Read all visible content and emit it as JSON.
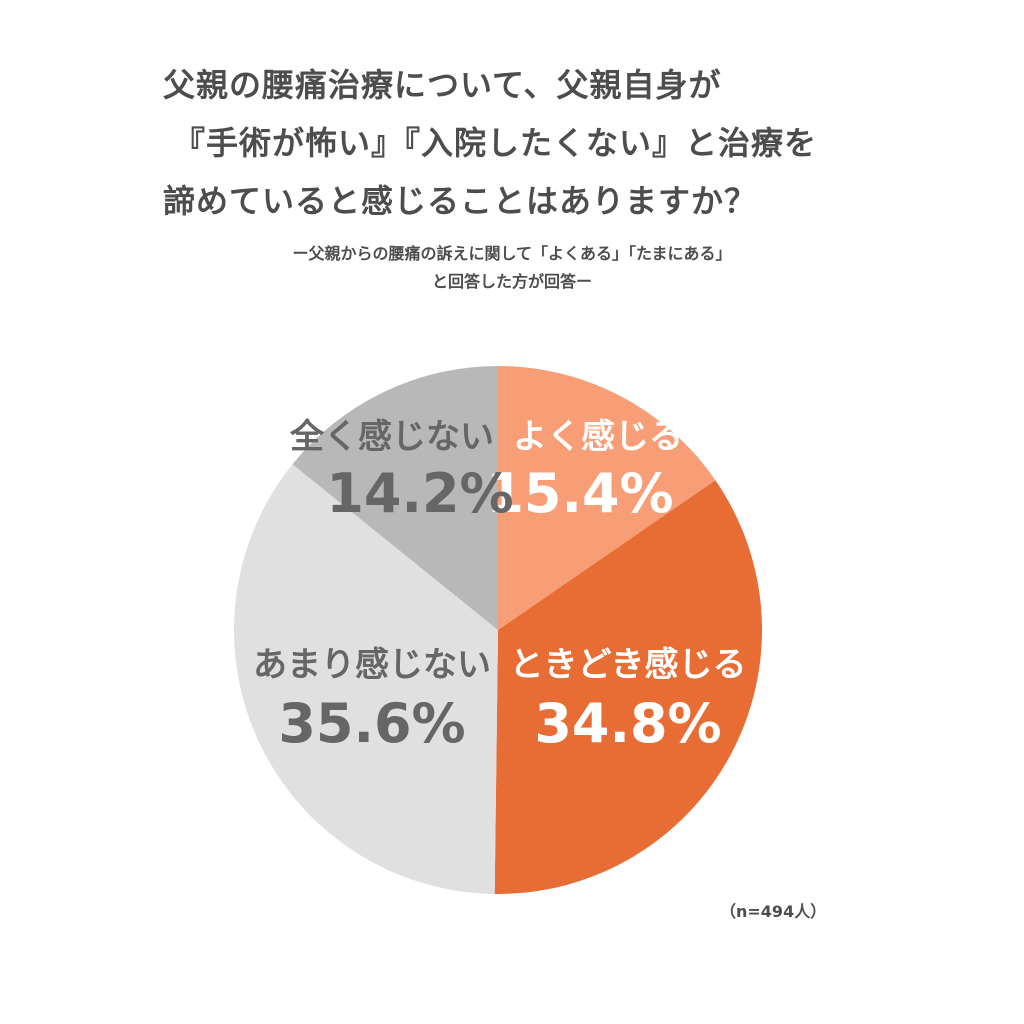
{
  "title_lines": [
    "父親の腰痛治療について、父親自身が",
    "『手術が怖い』『入院したくない』と治療を",
    "諦めていると感じることはありますか？"
  ],
  "subtitle_lines": [
    "ー父親からの腰痛の訴えに関して「よくある」「たまにある」",
    "と回答した方が回答ー"
  ],
  "note": "（n=494人）",
  "chart_data": {
    "type": "pie",
    "slices": [
      {
        "label": "よく感じる",
        "value": 15.4,
        "value_label": "15.4%",
        "color": "#f89e76",
        "text_color": "#ffffff"
      },
      {
        "label": "ときどき感じる",
        "value": 34.8,
        "value_label": "34.8%",
        "color": "#e86d34",
        "text_color": "#ffffff"
      },
      {
        "label": "あまり感じない",
        "value": 35.6,
        "value_label": "35.6%",
        "color": "#e0e0e0",
        "text_color": "#666666"
      },
      {
        "label": "全く感じない",
        "value": 14.2,
        "value_label": "14.2%",
        "color": "#b8b8b8",
        "text_color": "#666666"
      }
    ],
    "start": "top",
    "direction": "clockwise"
  }
}
